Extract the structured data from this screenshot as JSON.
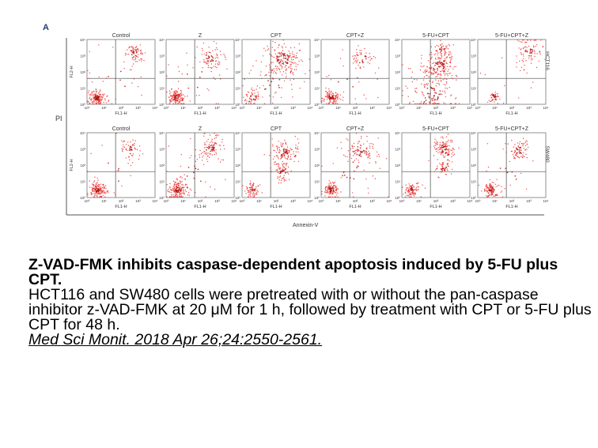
{
  "figure": {
    "panel_letter": "A",
    "y_axis_title": "PI",
    "x_axis_title": "Annexin-V",
    "panel_xlabel": "FL1-H",
    "panel_ylabel": "FL2-H",
    "tick_labels": [
      "10⁰",
      "10¹",
      "10²",
      "10³",
      "10⁴"
    ],
    "rows": [
      {
        "cell_line": "HCT116",
        "panels": [
          "Control",
          "Z",
          "CPT",
          "CPT+Z",
          "5-FU+CPT",
          "5-FU+CPT+Z"
        ]
      },
      {
        "cell_line": "SW480",
        "panels": [
          "Control",
          "Z",
          "CPT",
          "CPT+Z",
          "5-FU+CPT",
          "5-FU+CPT+Z"
        ]
      }
    ],
    "colors": {
      "dots": "#e8231f",
      "dense": "#b5120f",
      "axis": "#555555"
    }
  },
  "caption": {
    "title": "Z-VAD-FMK inhibits caspase-dependent apoptosis induced by 5-FU plus CPT.",
    "body": "HCT116 and SW480 cells were pretreated with or without the pan-caspase inhibitor z-VAD-FMK at 20 μM for 1 h, followed by treatment with CPT or 5-FU plus CPT for 48 h.",
    "citation": "Med Sci Monit. 2018 Apr 26;24:2550-2561."
  }
}
